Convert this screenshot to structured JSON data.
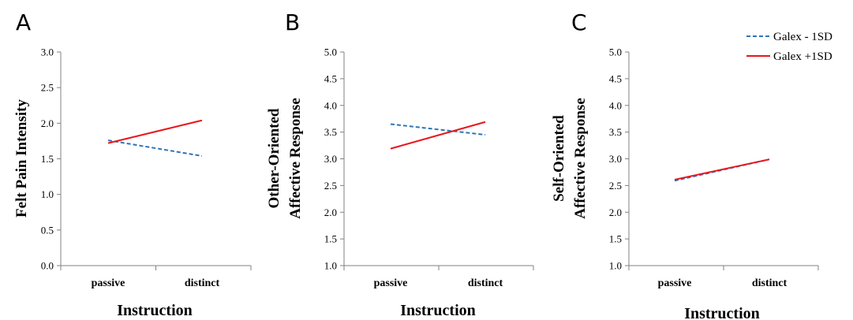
{
  "colors": {
    "low": "#2e75b6",
    "high": "#e8161c"
  },
  "legend": {
    "placement": "top-right",
    "items": [
      {
        "label": "Galex - 1SD",
        "series": "low",
        "dash": true
      },
      {
        "label": "Galex +1SD",
        "series": "high",
        "dash": false
      }
    ]
  },
  "chart_data": [
    {
      "panel": "A",
      "type": "line",
      "categories": [
        "passive",
        "distinct"
      ],
      "xlabel": "Instruction",
      "ylabel_lines": [
        "Felt Pain Intensity"
      ],
      "ylim": [
        0,
        3
      ],
      "yticks": [
        "0.0",
        "0.5",
        "1.0",
        "1.5",
        "2.0",
        "2.5",
        "3.0"
      ],
      "grid": false,
      "series": [
        {
          "name": "Galex - 1SD",
          "key": "low",
          "values": [
            1.76,
            1.54
          ]
        },
        {
          "name": "Galex +1SD",
          "key": "high",
          "values": [
            1.72,
            2.04
          ]
        }
      ]
    },
    {
      "panel": "B",
      "type": "line",
      "categories": [
        "passive",
        "distinct"
      ],
      "xlabel": "Instruction",
      "ylabel_lines": [
        "Other-Oriented",
        "Affective Response"
      ],
      "ylim": [
        1,
        5
      ],
      "yticks": [
        "1.0",
        "1.5",
        "2.0",
        "2.5",
        "3.0",
        "3.5",
        "4.0",
        "4.5",
        "5.0"
      ],
      "grid": false,
      "series": [
        {
          "name": "Galex - 1SD",
          "key": "low",
          "values": [
            3.65,
            3.45
          ]
        },
        {
          "name": "Galex +1SD",
          "key": "high",
          "values": [
            3.19,
            3.69
          ]
        }
      ]
    },
    {
      "panel": "C",
      "type": "line",
      "categories": [
        "passive",
        "distinct"
      ],
      "xlabel": "Instruction",
      "ylabel_lines": [
        "Self-Oriented",
        "Affective Response"
      ],
      "ylim": [
        1,
        5
      ],
      "yticks": [
        "1.0",
        "1.5",
        "2.0",
        "2.5",
        "3.0",
        "3.5",
        "4.0",
        "4.5",
        "5.0"
      ],
      "grid": false,
      "series": [
        {
          "name": "Galex - 1SD",
          "key": "low",
          "values": [
            2.59,
            2.99
          ]
        },
        {
          "name": "Galex +1SD",
          "key": "high",
          "values": [
            2.61,
            2.99
          ]
        }
      ]
    }
  ]
}
